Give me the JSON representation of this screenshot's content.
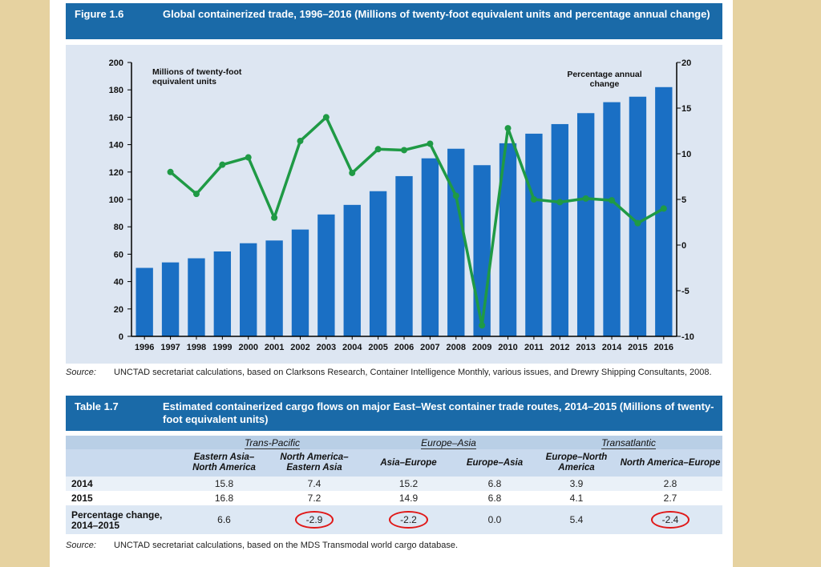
{
  "figure": {
    "number": "Figure 1.6",
    "title": "Global containerized trade, 1996–2016 (Millions of twenty-foot equivalent units and percentage annual change)",
    "source_label": "Source:",
    "source_text": "UNCTAD secretariat calculations, based on Clarksons Research, Container Intelligence Monthly, various issues, and Drewry Shipping Consultants, 2008."
  },
  "chart_data": {
    "type": "bar",
    "title": "Global containerized trade, 1996–2016",
    "categories": [
      "1996",
      "1997",
      "1998",
      "1999",
      "2000",
      "2001",
      "2002",
      "2003",
      "2004",
      "2005",
      "2006",
      "2007",
      "2008",
      "2009",
      "2010",
      "2011",
      "2012",
      "2013",
      "2014",
      "2015",
      "2016"
    ],
    "series": [
      {
        "name": "Millions of twenty-foot equivalent units",
        "type": "bar",
        "axis": "left",
        "values": [
          50,
          54,
          57,
          62,
          68,
          70,
          78,
          89,
          96,
          106,
          117,
          130,
          137,
          125,
          141,
          148,
          155,
          163,
          171,
          175,
          182
        ]
      },
      {
        "name": "Percentage annual change",
        "type": "line",
        "axis": "right",
        "values": [
          null,
          8.0,
          5.6,
          8.8,
          9.6,
          3.0,
          11.4,
          14.0,
          7.9,
          10.5,
          10.4,
          11.1,
          5.4,
          -8.8,
          12.8,
          5.0,
          4.7,
          5.1,
          4.9,
          2.4,
          4.0
        ]
      }
    ],
    "left_axis": {
      "label": "Millions of twenty-foot\nequivalent units",
      "ylim": [
        0,
        200
      ],
      "ticks": [
        0,
        20,
        40,
        60,
        80,
        100,
        120,
        140,
        160,
        180,
        200
      ]
    },
    "right_axis": {
      "label": "Percentage annual\nchange",
      "ylim": [
        -10,
        20
      ],
      "ticks": [
        -10,
        -5,
        0,
        5,
        10,
        15,
        20
      ],
      "tick_labels": [
        "-10",
        "-5",
        "0",
        "5",
        "10",
        "15",
        "20"
      ]
    },
    "colors": {
      "bar": "#1a6fc4",
      "line": "#1f9a45"
    }
  },
  "table": {
    "number": "Table 1.7",
    "title": "Estimated containerized cargo flows on major East–West container trade routes, 2014–2015 (Millions of twenty-foot equivalent units)",
    "groups": [
      "Trans-Pacific",
      "Europe–Asia",
      "Transatlantic"
    ],
    "columns": [
      "Eastern Asia–North America",
      "North America–Eastern Asia",
      "Asia–Europe",
      "Europe–Asia",
      "Europe–North America",
      "North America–Europe"
    ],
    "rows": [
      {
        "label": "2014",
        "values": [
          "15.8",
          "7.4",
          "15.2",
          "6.8",
          "3.9",
          "2.8"
        ]
      },
      {
        "label": "2015",
        "values": [
          "16.8",
          "7.2",
          "14.9",
          "6.8",
          "4.1",
          "2.7"
        ]
      },
      {
        "label": "Percentage change, 2014–2015",
        "values": [
          "6.6",
          "-2.9",
          "-2.2",
          "0.0",
          "5.4",
          "-2.4"
        ]
      }
    ],
    "source_label": "Source:",
    "source_text": "UNCTAD secretariat calculations, based on the MDS Transmodal world cargo database."
  },
  "colors": {
    "banner": "#1a6aa8",
    "chart_bg": "#dde6f2",
    "highlight_circle": "#e01818",
    "page_bg": "#e6d2a0"
  }
}
